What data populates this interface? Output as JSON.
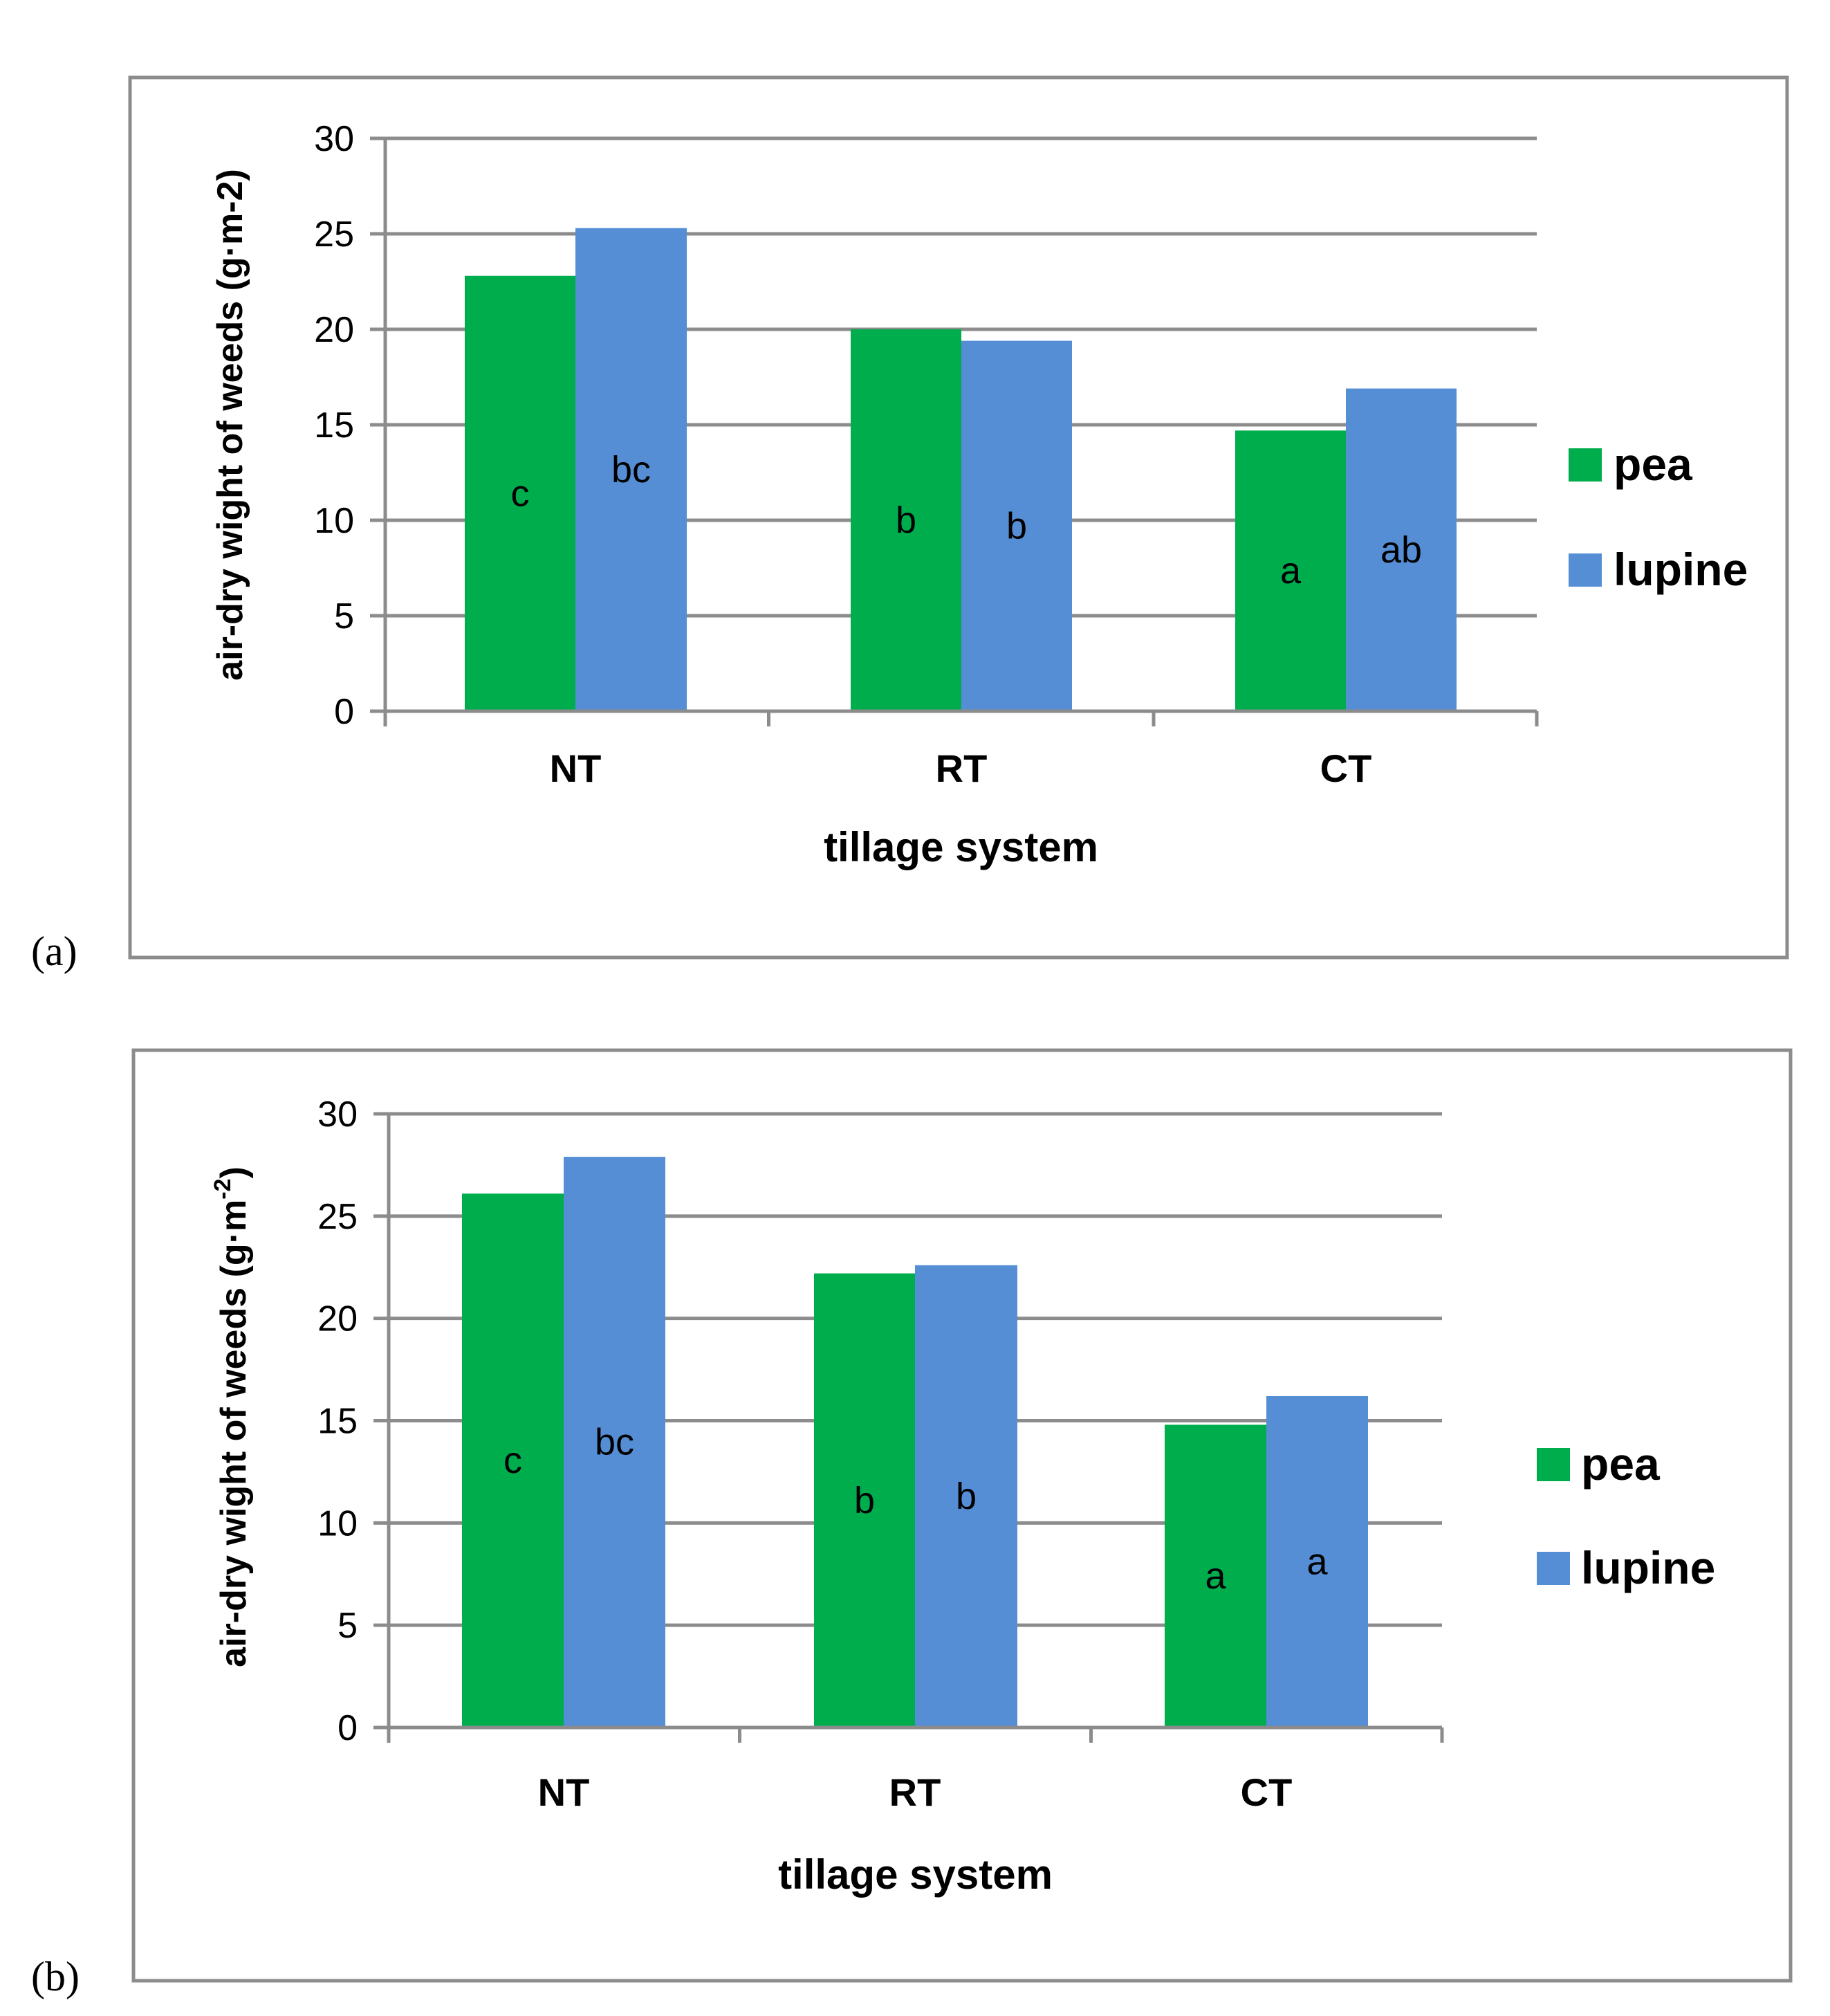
{
  "chart_data": [
    {
      "type": "bar",
      "panel_label": "(a)",
      "categories": [
        "NT",
        "RT",
        "CT"
      ],
      "series": [
        {
          "name": "pea",
          "color": "#00AD4D",
          "values": [
            22.8,
            20.0,
            14.7
          ],
          "labels": [
            "c",
            "b",
            "a"
          ]
        },
        {
          "name": "lupine",
          "color": "#558ED5",
          "values": [
            25.3,
            19.4,
            16.9
          ],
          "labels": [
            "bc",
            "b",
            "ab"
          ]
        }
      ],
      "xlabel": "tillage system",
      "ylabel": "air-dry wight of weeds (g·m-2)",
      "ylim": [
        0,
        30
      ],
      "yticks": [
        0,
        5,
        10,
        15,
        20,
        25,
        30
      ],
      "grid": true,
      "legend": "right"
    },
    {
      "type": "bar",
      "panel_label": "(b)",
      "categories": [
        "NT",
        "RT",
        "CT"
      ],
      "series": [
        {
          "name": "pea",
          "color": "#00AD4D",
          "values": [
            26.1,
            22.2,
            14.8
          ],
          "labels": [
            "c",
            "b",
            "a"
          ]
        },
        {
          "name": "lupine",
          "color": "#558ED5",
          "values": [
            27.9,
            22.6,
            16.2
          ],
          "labels": [
            "bc",
            "b",
            "a"
          ]
        }
      ],
      "xlabel": "tillage system",
      "ylabel": "air-dry wight of weeds (g·m",
      "ylabel_superscript": "-2",
      "ylabel_suffix": ")",
      "ylim": [
        0,
        30
      ],
      "yticks": [
        0,
        5,
        10,
        15,
        20,
        25,
        30
      ],
      "grid": true,
      "legend": "right"
    }
  ]
}
